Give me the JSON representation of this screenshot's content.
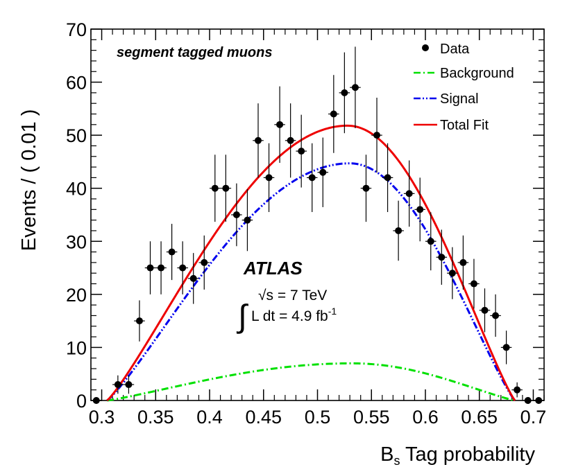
{
  "chart_data": {
    "type": "scatter",
    "title": "segment tagged muons",
    "xlabel_main": "B",
    "xlabel_sub": "s",
    "xlabel_rest": " Tag probability",
    "ylabel": "Events / ( 0.01 )",
    "xlim": [
      0.29,
      0.71
    ],
    "ylim": [
      0,
      70
    ],
    "x_ticks": [
      0.3,
      0.35,
      0.4,
      0.45,
      0.5,
      0.55,
      0.6,
      0.65,
      0.7
    ],
    "x_tick_labels": [
      "0.3",
      "0.35",
      "0.4",
      "0.45",
      "0.5",
      "0.55",
      "0.6",
      "0.65",
      "0.7"
    ],
    "y_ticks": [
      0,
      10,
      20,
      30,
      40,
      50,
      60,
      70
    ],
    "y_tick_labels": [
      "0",
      "10",
      "20",
      "30",
      "40",
      "50",
      "60",
      "70"
    ],
    "data": {
      "name": "Data",
      "x": [
        0.295,
        0.315,
        0.325,
        0.335,
        0.345,
        0.355,
        0.365,
        0.375,
        0.385,
        0.395,
        0.405,
        0.415,
        0.425,
        0.435,
        0.445,
        0.455,
        0.465,
        0.475,
        0.485,
        0.495,
        0.505,
        0.515,
        0.525,
        0.535,
        0.545,
        0.555,
        0.565,
        0.575,
        0.585,
        0.595,
        0.605,
        0.615,
        0.625,
        0.635,
        0.645,
        0.655,
        0.665,
        0.675,
        0.685,
        0.695,
        0.705
      ],
      "y": [
        0,
        3,
        3,
        15,
        25,
        25,
        28,
        25,
        23,
        26,
        40,
        40,
        35,
        34,
        49,
        42,
        52,
        49,
        47,
        42,
        43,
        54,
        58,
        59,
        40,
        50,
        42,
        32,
        39,
        36,
        30,
        27,
        24,
        26,
        22,
        17,
        16,
        10,
        2,
        0,
        0
      ]
    },
    "fits": [
      {
        "name": "Background",
        "color": "#00e000",
        "style": "dashdot",
        "peak_x": 0.532,
        "peak_y": 7,
        "x0": 0.305,
        "x1": 0.683
      },
      {
        "name": "Signal",
        "color": "#0000ee",
        "style": "dashdotdot",
        "peak_x": 0.53,
        "peak_y": 44.7,
        "x0": 0.305,
        "x1": 0.683
      },
      {
        "name": "Total Fit",
        "color": "#ee0000",
        "style": "solid",
        "peak_x": 0.528,
        "peak_y": 51.8,
        "x0": 0.305,
        "x1": 0.683
      }
    ],
    "legend": [
      "Data",
      "Background",
      "Signal",
      "Total Fit"
    ],
    "legend_position": "top-right",
    "annotations": {
      "experiment": "ATLAS",
      "energy": "√s = 7 TeV",
      "lumi_main": "L dt = 4.9 fb",
      "lumi_exp": "-1",
      "integral": "∫"
    }
  }
}
